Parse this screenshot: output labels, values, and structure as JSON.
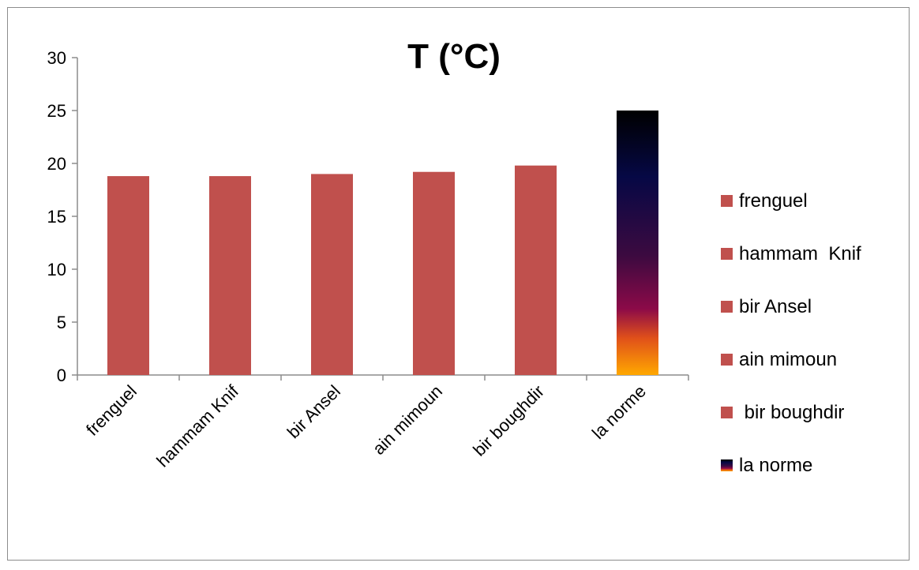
{
  "chart_data": {
    "type": "bar",
    "title": "T (°C)",
    "xlabel": "",
    "ylabel": "",
    "ylim": [
      0,
      30
    ],
    "yticks": [
      0,
      5,
      10,
      15,
      20,
      25,
      30
    ],
    "grid": false,
    "legend_position": "right",
    "categories": [
      "frenguel",
      "hammam  Knif",
      "bir Ansel",
      "ain mimoun",
      "bir boughdir",
      "la norme"
    ],
    "values": [
      18.8,
      18.8,
      19.0,
      19.2,
      19.8,
      25
    ],
    "legend": [
      "frenguel",
      "hammam  Knif",
      "bir Ansel",
      "ain mimoun",
      " bir boughdir",
      "la norme"
    ],
    "colors": {
      "bar": "#c0504d",
      "norme_gradient": [
        "#000000",
        "#0a0a4a",
        "#3a0a3a",
        "#8a0a4a",
        "#e04020",
        "#ffa500"
      ]
    }
  }
}
